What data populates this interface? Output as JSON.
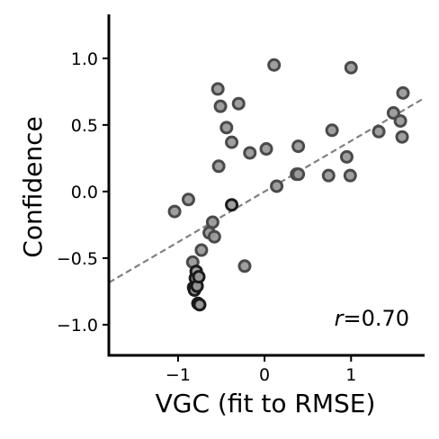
{
  "chart_data": {
    "type": "scatter",
    "xlabel": "VGC (fit to RMSE)",
    "ylabel": "Confidence",
    "xlim": [
      -1.8,
      1.85
    ],
    "ylim": [
      -1.23,
      1.33
    ],
    "xticks": [
      -1,
      0,
      1
    ],
    "xtick_labels": [
      "−1",
      "0",
      "1"
    ],
    "yticks": [
      1.0,
      0.5,
      0.0,
      -0.5,
      -1.0
    ],
    "ytick_labels": [
      "1.0",
      "0.5",
      "0.0",
      "−0.5",
      "−1.0"
    ],
    "grid": false,
    "annotation": {
      "r_symbol": "r",
      "r_text": "=0.70"
    },
    "trendline": {
      "slope": 0.38,
      "intercept": 0.0,
      "style": "dashed",
      "color": "#808080"
    },
    "points": [
      {
        "x": -1.04,
        "y": -0.15
      },
      {
        "x": -0.88,
        "y": -0.06
      },
      {
        "x": -0.83,
        "y": -0.53
      },
      {
        "x": -0.82,
        "y": -0.72
      },
      {
        "x": -0.8,
        "y": -0.65
      },
      {
        "x": -0.79,
        "y": -0.6
      },
      {
        "x": -0.81,
        "y": -0.74
      },
      {
        "x": -0.78,
        "y": -0.71
      },
      {
        "x": -0.77,
        "y": -0.84
      },
      {
        "x": -0.75,
        "y": -0.85
      },
      {
        "x": -0.76,
        "y": -0.64
      },
      {
        "x": -0.73,
        "y": -0.44
      },
      {
        "x": -0.64,
        "y": -0.31
      },
      {
        "x": -0.58,
        "y": -0.34
      },
      {
        "x": -0.6,
        "y": -0.23
      },
      {
        "x": -0.54,
        "y": 0.77
      },
      {
        "x": -0.51,
        "y": 0.64
      },
      {
        "x": -0.53,
        "y": 0.19
      },
      {
        "x": -0.44,
        "y": 0.48
      },
      {
        "x": -0.38,
        "y": 0.37
      },
      {
        "x": -0.38,
        "y": -0.1
      },
      {
        "x": -0.3,
        "y": 0.66
      },
      {
        "x": -0.23,
        "y": -0.56
      },
      {
        "x": -0.17,
        "y": 0.29
      },
      {
        "x": 0.02,
        "y": 0.32
      },
      {
        "x": 0.11,
        "y": 0.95
      },
      {
        "x": 0.14,
        "y": 0.04
      },
      {
        "x": 0.37,
        "y": 0.13
      },
      {
        "x": 0.39,
        "y": 0.34
      },
      {
        "x": 0.39,
        "y": 0.13
      },
      {
        "x": 0.74,
        "y": 0.12
      },
      {
        "x": 0.78,
        "y": 0.46
      },
      {
        "x": 0.95,
        "y": 0.26
      },
      {
        "x": 0.99,
        "y": 0.12
      },
      {
        "x": 1.0,
        "y": 0.93
      },
      {
        "x": 1.32,
        "y": 0.45
      },
      {
        "x": 1.49,
        "y": 0.59
      },
      {
        "x": 1.57,
        "y": 0.53
      },
      {
        "x": 1.6,
        "y": 0.74
      },
      {
        "x": 1.59,
        "y": 0.41
      }
    ]
  },
  "colors": {
    "point_fill": "#9a9a9a",
    "point_stroke_default": "#4a4a4a",
    "point_stroke_dark": "#1a1a1a",
    "trendline": "#808080",
    "axis": "#000000"
  }
}
